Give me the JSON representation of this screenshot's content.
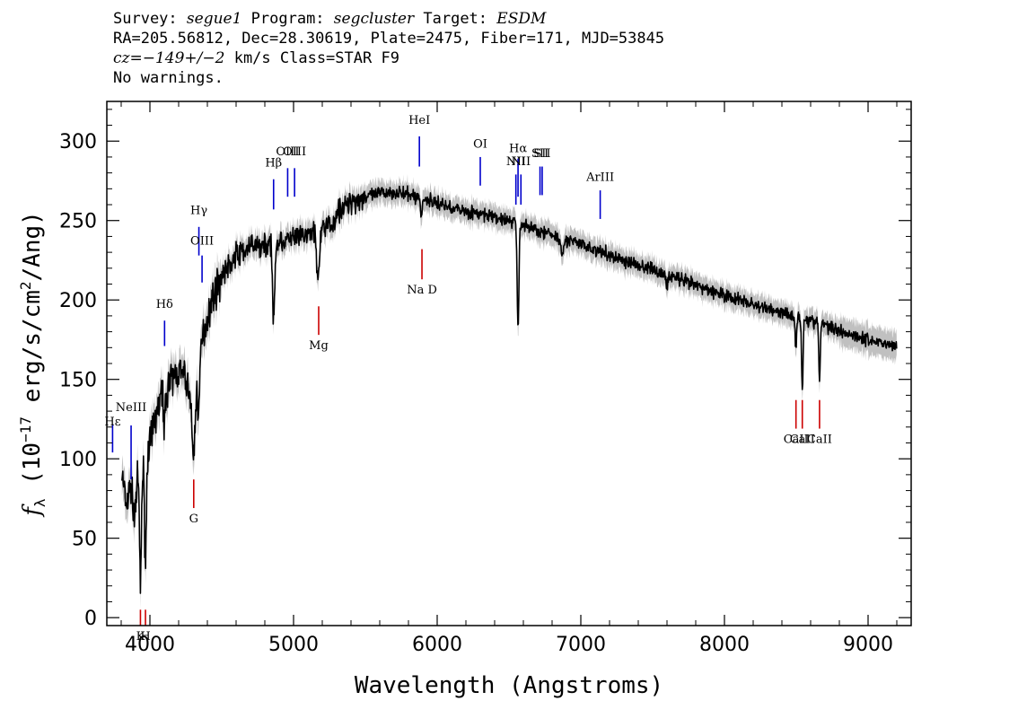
{
  "header": {
    "survey_label": "Survey:",
    "survey": "segue1",
    "program_label": "Program:",
    "program": "segcluster",
    "target_label": "Target:",
    "target": "ESDM",
    "line2": "RA=205.56812, Dec=28.30619, Plate=2475, Fiber=171, MJD=53845",
    "cz_prefix": "cz=",
    "cz_value": "−149+/−2",
    "cz_suffix": " km/s Class=STAR F9",
    "line4": "No warnings."
  },
  "chart_data": {
    "type": "line",
    "xlabel": "Wavelength (Angstroms)",
    "ylabel_parts": [
      "f",
      "λ",
      " (10",
      "−17",
      " erg/s/cm",
      "2",
      "/Ang)"
    ],
    "xlim": [
      3700,
      9300
    ],
    "ylim": [
      -5,
      325
    ],
    "xticks": [
      4000,
      5000,
      6000,
      7000,
      8000,
      9000
    ],
    "xtick_labels": [
      "4000",
      "5000",
      "6000",
      "7000",
      "8000",
      "9000"
    ],
    "yticks": [
      0,
      50,
      100,
      150,
      200,
      250,
      300
    ],
    "ytick_labels": [
      "0",
      "50",
      "100",
      "150",
      "200",
      "250",
      "300"
    ],
    "grid": false,
    "series_color": "#000000",
    "error_color": "#c0c0c0",
    "emission_color": "#0000cc",
    "absorption_color": "#cc0000",
    "continuum": [
      [
        3805,
        90
      ],
      [
        3850,
        82
      ],
      [
        3900,
        85
      ],
      [
        3950,
        92
      ],
      [
        4000,
        110
      ],
      [
        4050,
        130
      ],
      [
        4100,
        145
      ],
      [
        4150,
        150
      ],
      [
        4200,
        155
      ],
      [
        4250,
        150
      ],
      [
        4300,
        135
      ],
      [
        4350,
        170
      ],
      [
        4400,
        190
      ],
      [
        4450,
        205
      ],
      [
        4500,
        215
      ],
      [
        4550,
        222
      ],
      [
        4600,
        228
      ],
      [
        4650,
        231
      ],
      [
        4700,
        233
      ],
      [
        4750,
        234
      ],
      [
        4800,
        235
      ],
      [
        4900,
        237
      ],
      [
        5000,
        239
      ],
      [
        5100,
        241
      ],
      [
        5200,
        245
      ],
      [
        5300,
        255
      ],
      [
        5400,
        262
      ],
      [
        5500,
        265
      ],
      [
        5600,
        267
      ],
      [
        5700,
        268
      ],
      [
        5800,
        266
      ],
      [
        5900,
        264
      ],
      [
        6000,
        261
      ],
      [
        6100,
        258
      ],
      [
        6200,
        256
      ],
      [
        6300,
        254
      ],
      [
        6400,
        252
      ],
      [
        6500,
        250
      ],
      [
        6600,
        247
      ],
      [
        6700,
        244
      ],
      [
        6800,
        241
      ],
      [
        6900,
        238
      ],
      [
        7000,
        235
      ],
      [
        7200,
        228
      ],
      [
        7400,
        222
      ],
      [
        7600,
        216
      ],
      [
        7800,
        209
      ],
      [
        8000,
        203
      ],
      [
        8200,
        197
      ],
      [
        8400,
        192
      ],
      [
        8600,
        187
      ],
      [
        8800,
        181
      ],
      [
        9000,
        175
      ],
      [
        9200,
        171
      ]
    ],
    "absorption_features": [
      [
        3835,
        12,
        15
      ],
      [
        3890,
        10,
        18
      ],
      [
        3934,
        6,
        72
      ],
      [
        3969,
        6,
        65
      ],
      [
        4102,
        8,
        20
      ],
      [
        4305,
        12,
        35
      ],
      [
        4341,
        8,
        30
      ],
      [
        4861,
        8,
        45
      ],
      [
        5172,
        10,
        30
      ],
      [
        5270,
        8,
        10
      ],
      [
        5890,
        6,
        12
      ],
      [
        6563,
        6,
        65
      ],
      [
        6870,
        10,
        8
      ],
      [
        7600,
        12,
        5
      ],
      [
        8498,
        5,
        20
      ],
      [
        8542,
        5,
        45
      ],
      [
        8662,
        5,
        35
      ]
    ],
    "noise_sigma": 6,
    "emission_lines": [
      {
        "label": "Hε",
        "x": 3740,
        "y_bottom": 104,
        "y_top": 122,
        "label_y": 121
      },
      {
        "label": "NeIII",
        "x": 3869,
        "y_bottom": 87,
        "y_top": 121,
        "label_y": 130
      },
      {
        "label": "Hδ",
        "x": 4102,
        "y_bottom": 171,
        "y_top": 187,
        "label_y": 195
      },
      {
        "label": "Hγ",
        "x": 4341,
        "y_bottom": 228,
        "y_top": 246,
        "label_y": 254
      },
      {
        "label": "OIII",
        "x": 4363,
        "y_bottom": 211,
        "y_top": 228,
        "label_y": 235
      },
      {
        "label": "Hβ",
        "x": 4861,
        "y_bottom": 257,
        "y_top": 276,
        "label_y": 284
      },
      {
        "label": "OIII",
        "x": 4959,
        "y_bottom": 265,
        "y_top": 283,
        "label_y": 291
      },
      {
        "label": "OIII",
        "x": 5007,
        "y_bottom": 265,
        "y_top": 283,
        "label_y": 291
      },
      {
        "label": "HeI",
        "x": 5876,
        "y_bottom": 284,
        "y_top": 303,
        "label_y": 311
      },
      {
        "label": "OI",
        "x": 6300,
        "y_bottom": 272,
        "y_top": 290,
        "label_y": 296
      },
      {
        "label": "NII",
        "x": 6548,
        "y_bottom": 260,
        "y_top": 279,
        "label_y": 285
      },
      {
        "label": "Hα",
        "x": 6563,
        "y_bottom": 265,
        "y_top": 289,
        "label_y": 293
      },
      {
        "label": "NII",
        "x": 6583,
        "y_bottom": 260,
        "y_top": 279,
        "label_y": 285
      },
      {
        "label": "SII",
        "x": 6716,
        "y_bottom": 266,
        "y_top": 284,
        "label_y": 290
      },
      {
        "label": "SII",
        "x": 6731,
        "y_bottom": 266,
        "y_top": 284,
        "label_y": 290
      },
      {
        "label": "ArIII",
        "x": 7135,
        "y_bottom": 251,
        "y_top": 269,
        "label_y": 275
      }
    ],
    "absorption_lines": [
      {
        "label": "K",
        "x": 3934,
        "y_bottom": -5,
        "y_top": 5,
        "label_y": -14
      },
      {
        "label": "H",
        "x": 3969,
        "y_bottom": -5,
        "y_top": 5,
        "label_y": -14
      },
      {
        "label": "G",
        "x": 4305,
        "y_bottom": 69,
        "y_top": 87,
        "label_y": 60
      },
      {
        "label": "Mg",
        "x": 5175,
        "y_bottom": 178,
        "y_top": 196,
        "label_y": 169
      },
      {
        "label": "Na D",
        "x": 5894,
        "y_bottom": 213,
        "y_top": 232,
        "label_y": 204
      },
      {
        "label": "CaII",
        "x": 8498,
        "y_bottom": 119,
        "y_top": 137,
        "label_y": 110
      },
      {
        "label": "CaII",
        "x": 8542,
        "y_bottom": 119,
        "y_top": 137,
        "label_y": 110
      },
      {
        "label": "CaII",
        "x": 8662,
        "y_bottom": 119,
        "y_top": 137,
        "label_y": 110
      }
    ]
  }
}
